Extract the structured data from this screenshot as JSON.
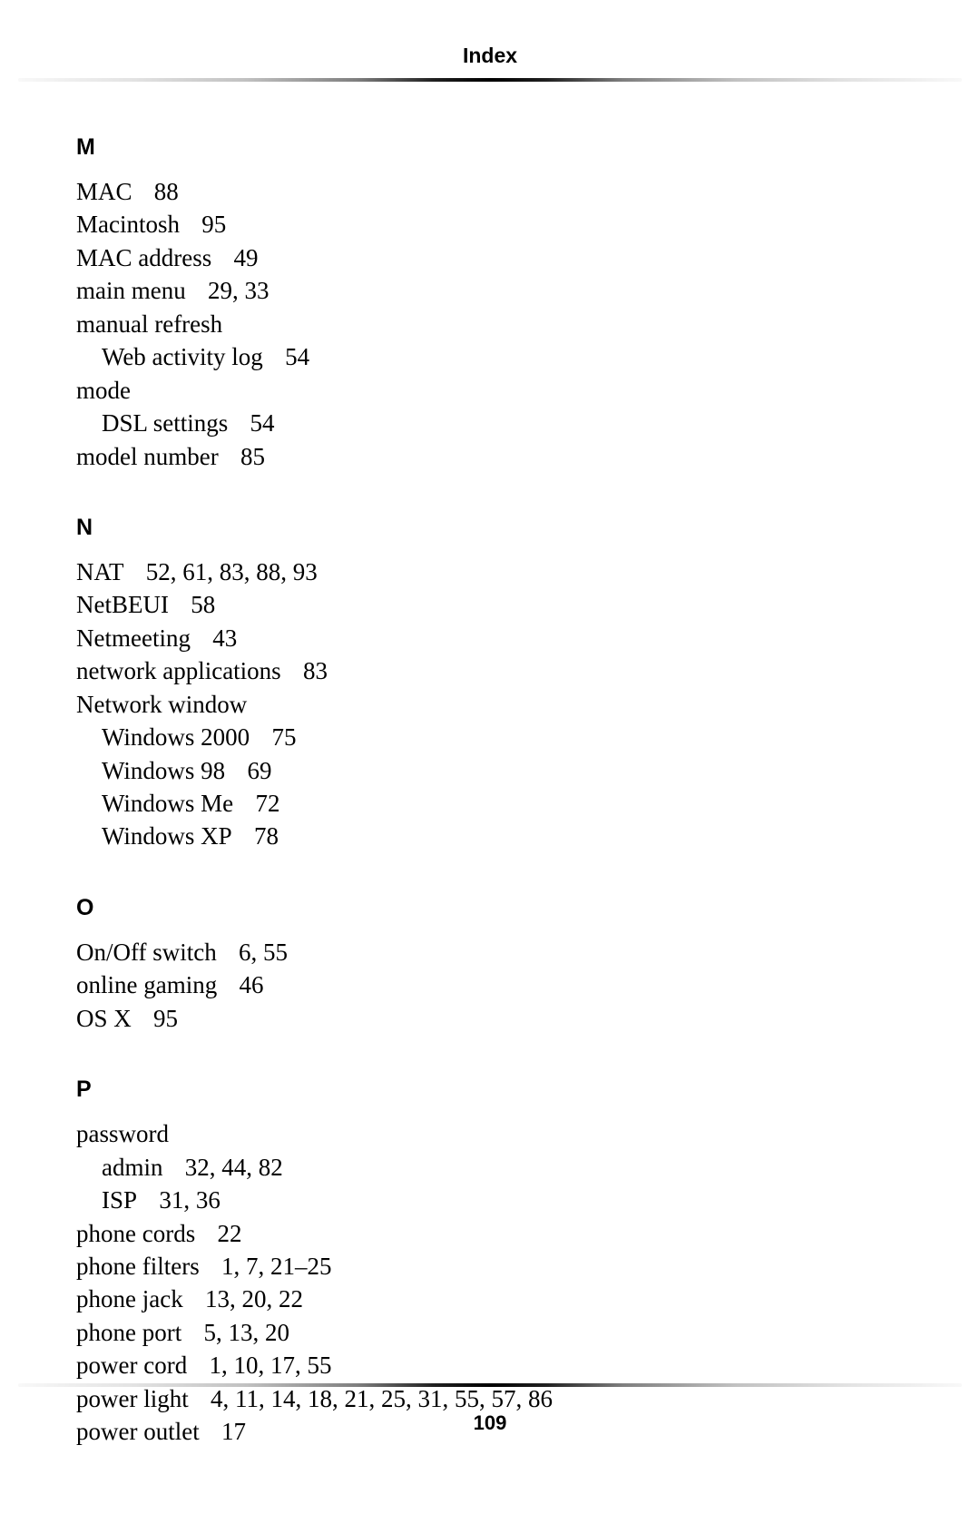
{
  "header": {
    "title": "Index"
  },
  "footer": {
    "page_number": "109"
  },
  "index": [
    {
      "letter": "M",
      "entries": [
        {
          "term": "MAC",
          "pages": "88"
        },
        {
          "term": "Macintosh",
          "pages": "95"
        },
        {
          "term": "MAC address",
          "pages": "49"
        },
        {
          "term": "main menu",
          "pages": "29, 33"
        },
        {
          "term": "manual refresh",
          "pages": ""
        },
        {
          "term": "Web activity log",
          "pages": "54",
          "indent": true
        },
        {
          "term": "mode",
          "pages": ""
        },
        {
          "term": "DSL settings",
          "pages": "54",
          "indent": true
        },
        {
          "term": "model number",
          "pages": "85"
        }
      ]
    },
    {
      "letter": "N",
      "entries": [
        {
          "term": "NAT",
          "pages": "52, 61, 83, 88, 93"
        },
        {
          "term": "NetBEUI",
          "pages": "58"
        },
        {
          "term": "Netmeeting",
          "pages": "43"
        },
        {
          "term": "network applications",
          "pages": "83"
        },
        {
          "term": "Network window",
          "pages": ""
        },
        {
          "term": "Windows 2000",
          "pages": "75",
          "indent": true
        },
        {
          "term": "Windows 98",
          "pages": "69",
          "indent": true
        },
        {
          "term": "Windows Me",
          "pages": "72",
          "indent": true
        },
        {
          "term": "Windows XP",
          "pages": "78",
          "indent": true
        }
      ]
    },
    {
      "letter": "O",
      "entries": [
        {
          "term": "On/Off switch",
          "pages": "6, 55"
        },
        {
          "term": "online gaming",
          "pages": "46"
        },
        {
          "term": "OS X",
          "pages": "95"
        }
      ]
    },
    {
      "letter": "P",
      "entries": [
        {
          "term": "password",
          "pages": ""
        },
        {
          "term": "admin",
          "pages": "32, 44, 82",
          "indent": true
        },
        {
          "term": "ISP",
          "pages": "31, 36",
          "indent": true
        },
        {
          "term": "phone cords",
          "pages": "22"
        },
        {
          "term": "phone filters",
          "pages": "1, 7, 21–25"
        },
        {
          "term": "phone jack",
          "pages": "13, 20, 22"
        },
        {
          "term": "phone port",
          "pages": "5, 13, 20"
        },
        {
          "term": "power cord",
          "pages": "1, 10, 17, 55"
        },
        {
          "term": "power light",
          "pages": "4, 11, 14, 18, 21, 25, 31, 55, 57, 86"
        },
        {
          "term": "power outlet",
          "pages": "17"
        }
      ]
    }
  ]
}
